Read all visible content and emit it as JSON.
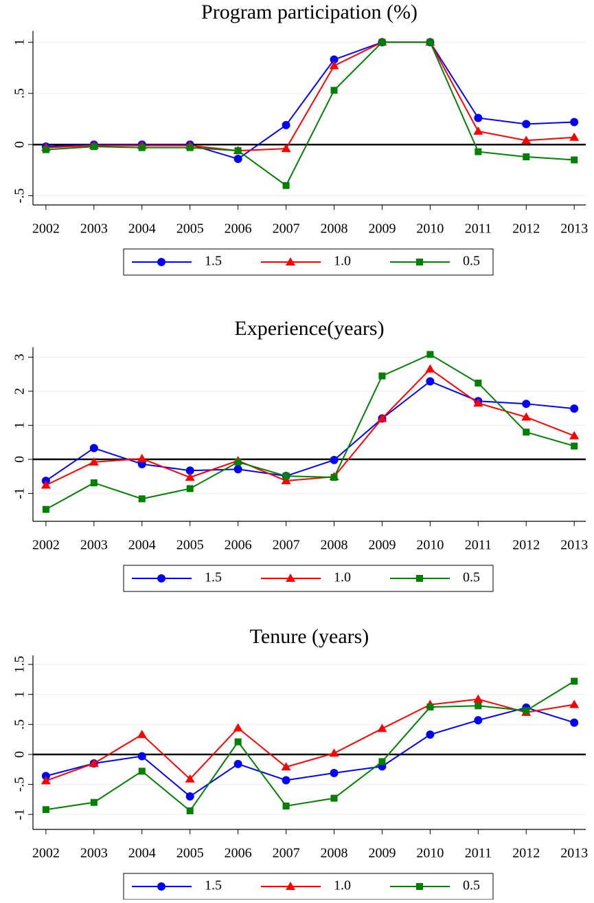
{
  "chart_data": [
    {
      "type": "line",
      "title": "Program participation (%)",
      "x": [
        2002,
        2003,
        2004,
        2005,
        2006,
        2007,
        2008,
        2009,
        2010,
        2011,
        2012,
        2013
      ],
      "xlim": [
        2001.73,
        2013.24
      ],
      "xticks": [
        2002,
        2003,
        2004,
        2005,
        2006,
        2007,
        2008,
        2009,
        2010,
        2011,
        2012,
        2013
      ],
      "ylim": [
        -0.59,
        1.11
      ],
      "yticks": [
        {
          "value": -0.5,
          "label": "-.5"
        },
        0,
        {
          "value": 0.5,
          "label": ".5"
        },
        1
      ],
      "grid": true,
      "refline": 0,
      "legend": "bottom",
      "series": [
        {
          "name": "1.5",
          "color": "#0000ff",
          "marker": "circle",
          "values": [
            -0.02,
            0,
            0,
            0,
            -0.14,
            0.19,
            0.83,
            1.0,
            1.0,
            0.26,
            0.2,
            0.22
          ]
        },
        {
          "name": "1.0",
          "color": "#ff0000",
          "marker": "triangle",
          "values": [
            -0.03,
            -0.01,
            -0.01,
            -0.01,
            -0.06,
            -0.04,
            0.77,
            1.0,
            1.0,
            0.13,
            0.04,
            0.07
          ]
        },
        {
          "name": "0.5",
          "color": "#008000",
          "marker": "square",
          "values": [
            -0.05,
            -0.02,
            -0.03,
            -0.03,
            -0.06,
            -0.4,
            0.53,
            1.0,
            1.0,
            -0.07,
            -0.12,
            -0.15
          ]
        }
      ]
    },
    {
      "type": "line",
      "title": "Experience(years)",
      "x": [
        2002,
        2003,
        2004,
        2005,
        2006,
        2007,
        2008,
        2009,
        2010,
        2011,
        2012,
        2013
      ],
      "xlim": [
        2001.73,
        2013.24
      ],
      "xticks": [
        2002,
        2003,
        2004,
        2005,
        2006,
        2007,
        2008,
        2009,
        2010,
        2011,
        2012,
        2013
      ],
      "ylim": [
        -1.82,
        3.29
      ],
      "yticks": [
        -1,
        0,
        1,
        2,
        3
      ],
      "grid": true,
      "refline": 0,
      "legend": "bottom",
      "series": [
        {
          "name": "1.5",
          "color": "#0000ff",
          "marker": "circle",
          "values": [
            -0.63,
            0.33,
            -0.14,
            -0.33,
            -0.29,
            -0.49,
            -0.02,
            1.2,
            2.29,
            1.71,
            1.63,
            1.49
          ]
        },
        {
          "name": "1.0",
          "color": "#ff0000",
          "marker": "triangle",
          "values": [
            -0.76,
            -0.08,
            0.02,
            -0.53,
            -0.04,
            -0.63,
            -0.51,
            1.2,
            2.65,
            1.65,
            1.24,
            0.69
          ]
        },
        {
          "name": "0.5",
          "color": "#008000",
          "marker": "square",
          "values": [
            -1.47,
            -0.69,
            -1.16,
            -0.86,
            -0.08,
            -0.49,
            -0.53,
            2.45,
            3.08,
            2.24,
            0.8,
            0.39
          ]
        }
      ]
    },
    {
      "type": "line",
      "title": "Tenure (years)",
      "x": [
        2002,
        2003,
        2004,
        2005,
        2006,
        2007,
        2008,
        2009,
        2010,
        2011,
        2012,
        2013
      ],
      "xlim": [
        2001.73,
        2013.24
      ],
      "xticks": [
        2002,
        2003,
        2004,
        2005,
        2006,
        2007,
        2008,
        2009,
        2010,
        2011,
        2012,
        2013
      ],
      "ylim": [
        -1.25,
        1.65
      ],
      "yticks": [
        -1,
        {
          "value": -0.5,
          "label": "-.5"
        },
        0,
        {
          "value": 0.5,
          "label": ".5"
        },
        1,
        1.5
      ],
      "grid": true,
      "refline": 0,
      "legend": "bottom",
      "series": [
        {
          "name": "1.5",
          "color": "#0000ff",
          "marker": "circle",
          "values": [
            -0.36,
            -0.15,
            -0.03,
            -0.7,
            -0.16,
            -0.43,
            -0.31,
            -0.2,
            0.33,
            0.57,
            0.78,
            0.53
          ]
        },
        {
          "name": "1.0",
          "color": "#ff0000",
          "marker": "triangle",
          "values": [
            -0.44,
            -0.15,
            0.33,
            -0.41,
            0.44,
            -0.21,
            0.02,
            0.43,
            0.83,
            0.92,
            0.7,
            0.83
          ]
        },
        {
          "name": "0.5",
          "color": "#008000",
          "marker": "square",
          "values": [
            -0.92,
            -0.8,
            -0.28,
            -0.94,
            0.21,
            -0.86,
            -0.73,
            -0.12,
            0.79,
            0.81,
            0.73,
            1.22
          ]
        }
      ]
    }
  ]
}
